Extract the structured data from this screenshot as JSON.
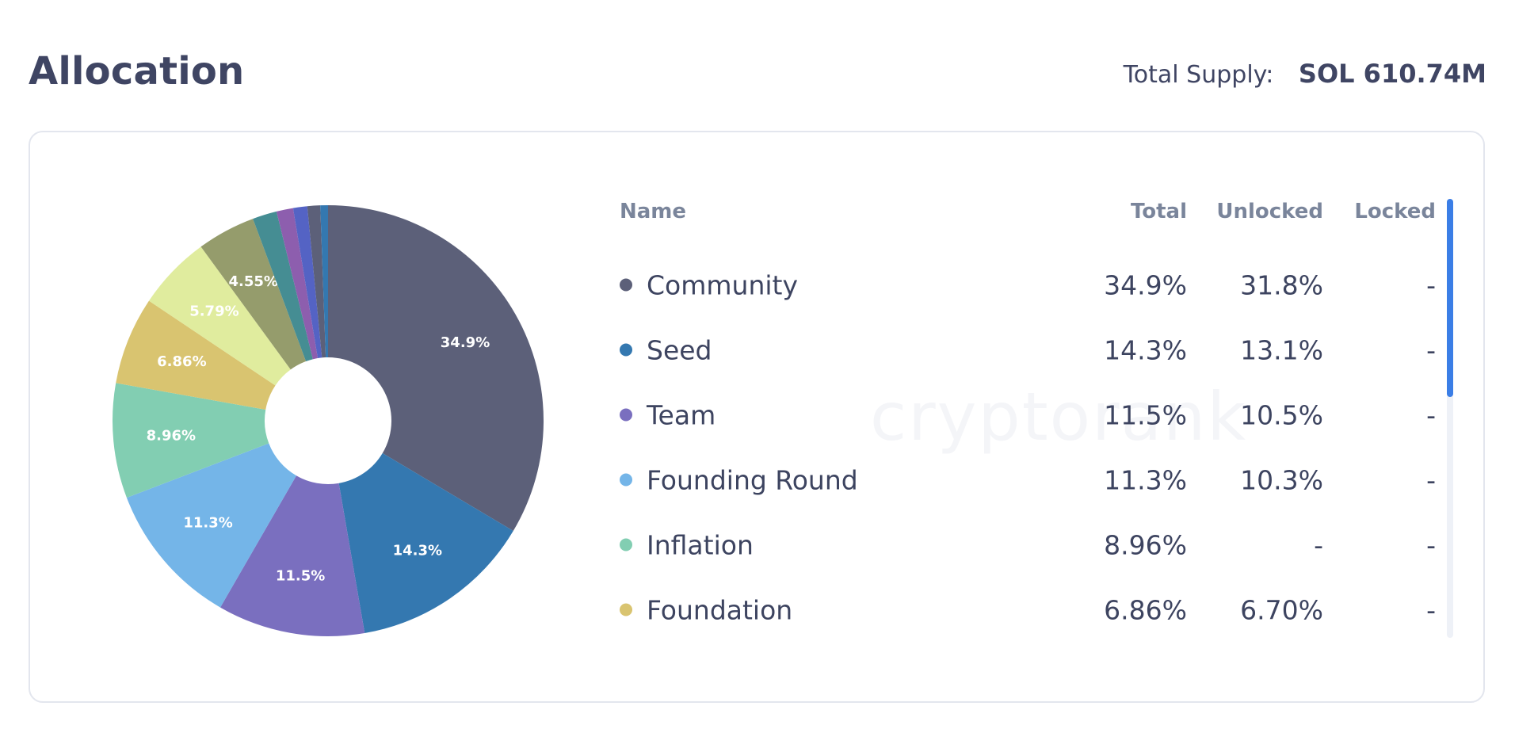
{
  "header": {
    "title": "Allocation",
    "supply_label": "Total Supply:",
    "supply_value": "SOL 610.74M"
  },
  "watermark": "cryptorank",
  "table": {
    "headers": {
      "name": "Name",
      "total": "Total",
      "unlocked": "Unlocked",
      "locked": "Locked"
    },
    "rows": [
      {
        "name": "Community",
        "total": "34.9%",
        "unlocked": "31.8%",
        "locked": "-",
        "color": "#5c6079"
      },
      {
        "name": "Seed",
        "total": "14.3%",
        "unlocked": "13.1%",
        "locked": "-",
        "color": "#3478b0"
      },
      {
        "name": "Team",
        "total": "11.5%",
        "unlocked": "10.5%",
        "locked": "-",
        "color": "#7a6fbf"
      },
      {
        "name": "Founding Round",
        "total": "11.3%",
        "unlocked": "10.3%",
        "locked": "-",
        "color": "#74b5e8"
      },
      {
        "name": "Inflation",
        "total": "8.96%",
        "unlocked": "-",
        "locked": "-",
        "color": "#82ceb2"
      },
      {
        "name": "Foundation",
        "total": "6.86%",
        "unlocked": "6.70%",
        "locked": "-",
        "color": "#d9c470"
      }
    ],
    "scroll_position": 0
  },
  "chart_data": {
    "type": "pie",
    "donut": true,
    "slices": [
      {
        "value": 34.9,
        "label": "34.9%",
        "color": "#5c6079"
      },
      {
        "value": 14.3,
        "label": "14.3%",
        "color": "#3478b0"
      },
      {
        "value": 11.5,
        "label": "11.5%",
        "color": "#7a6fbf"
      },
      {
        "value": 11.3,
        "label": "11.3%",
        "color": "#74b5e8"
      },
      {
        "value": 8.96,
        "label": "8.96%",
        "color": "#82ceb2"
      },
      {
        "value": 6.86,
        "label": "6.86%",
        "color": "#d9c470"
      },
      {
        "value": 5.79,
        "label": "5.79%",
        "color": "#e0ec9e"
      },
      {
        "value": 4.55,
        "label": "4.55%",
        "color": "#959c6c"
      },
      {
        "value": 1.9,
        "label": "",
        "color": "#458d93"
      },
      {
        "value": 1.3,
        "label": "",
        "color": "#8d5eae"
      },
      {
        "value": 1.1,
        "label": "",
        "color": "#5463c4"
      },
      {
        "value": 1.0,
        "label": "",
        "color": "#5c6079"
      },
      {
        "value": 0.6,
        "label": "",
        "color": "#3478b0"
      }
    ]
  }
}
